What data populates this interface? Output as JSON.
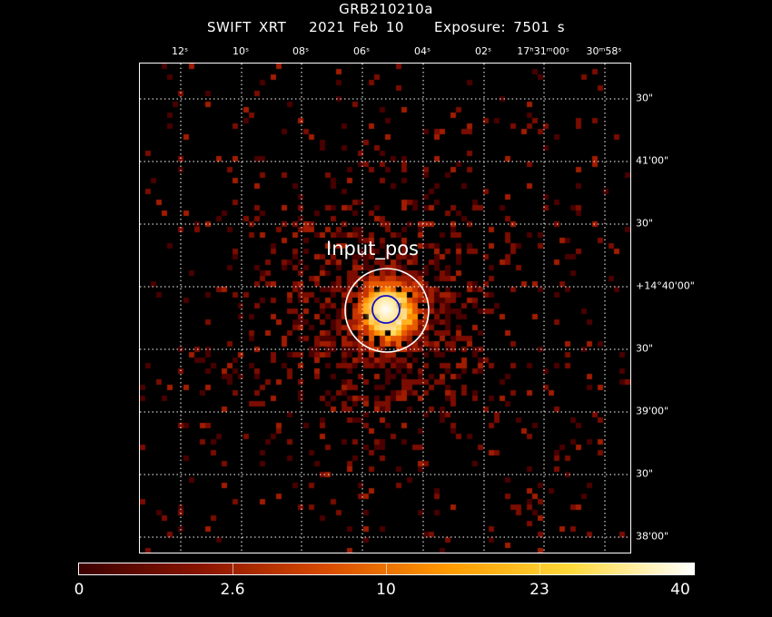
{
  "header": {
    "title": "GRB210210a",
    "subtitle": "SWIFT XRT   2021 Feb 10    Exposure: 7501 s"
  },
  "image": {
    "source_label": "Input_pos",
    "ra_labels": [
      "12ˢ",
      "10ˢ",
      "08ˢ",
      "06ˢ",
      "04ˢ",
      "02ˢ",
      "17ʰ31ᵐ00ˢ",
      "30ᵐ58ˢ"
    ],
    "dec_labels": [
      "30\"",
      "41'00\"",
      "30\"",
      "+14°40'00\"",
      "30\"",
      "39'00\"",
      "30\"",
      "38'00\""
    ],
    "colors": {
      "circle_outer": "#ffffff",
      "circle_inner": "#1010c8",
      "grid": "#ffffff",
      "background": "#000000"
    }
  },
  "colorbar": {
    "tick_labels": [
      "0",
      "2.6",
      "10",
      "23",
      "40"
    ],
    "colormap": [
      "#3a0000",
      "#8a1400",
      "#d84b00",
      "#ff9a00",
      "#ffd93b",
      "#ffffff"
    ]
  }
}
